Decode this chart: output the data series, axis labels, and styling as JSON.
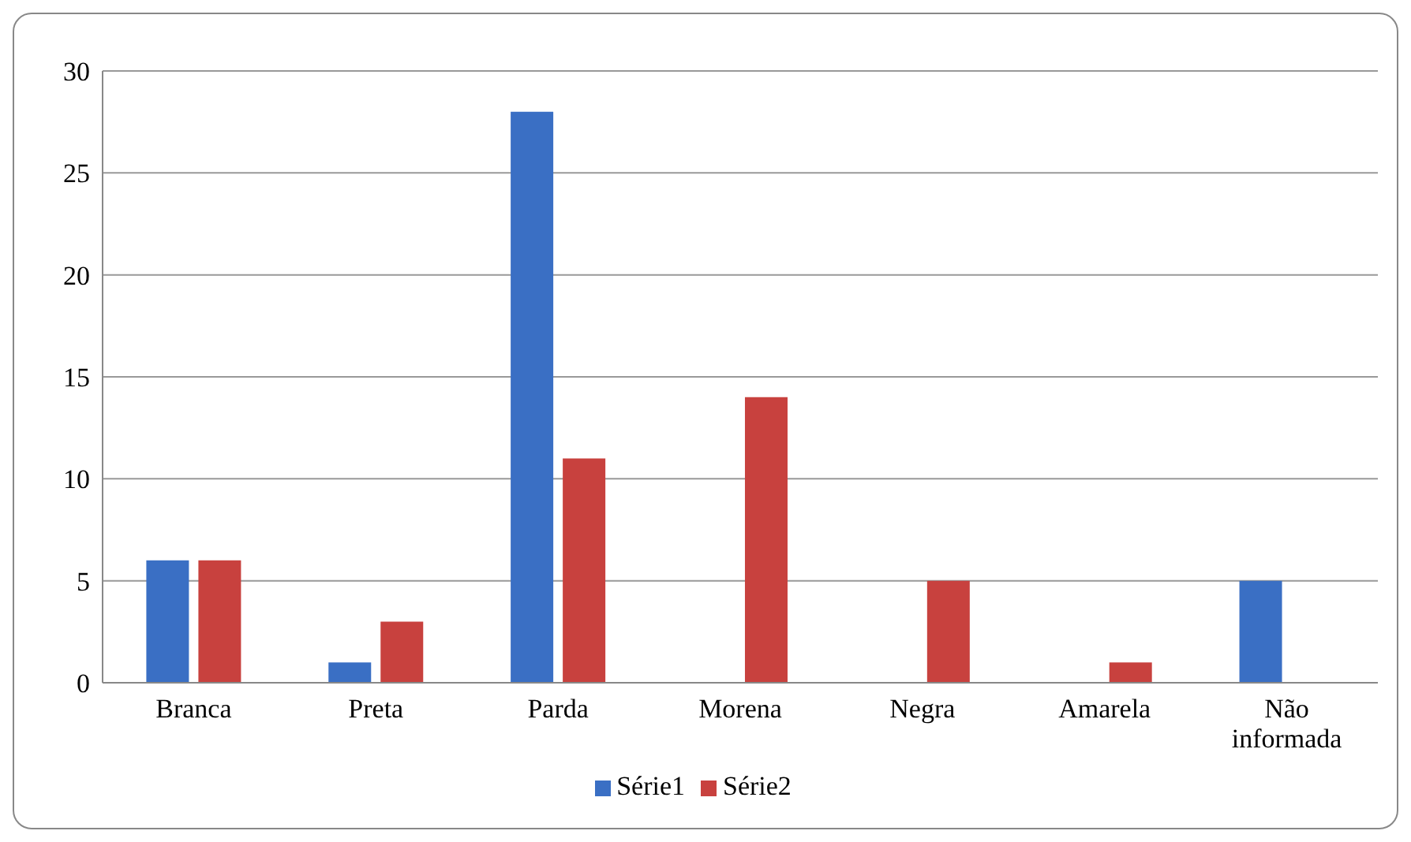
{
  "chart_data": {
    "type": "bar",
    "categories": [
      "Branca",
      "Preta",
      "Parda",
      "Morena",
      "Negra",
      "Amarela",
      "Não informada"
    ],
    "series": [
      {
        "name": "Série1",
        "color": "#3a6fc4",
        "values": [
          6,
          1,
          28,
          null,
          null,
          null,
          5
        ]
      },
      {
        "name": "Série2",
        "color": "#c8413e",
        "values": [
          6,
          3,
          11,
          14,
          5,
          1,
          null
        ]
      }
    ],
    "ylim": [
      0,
      30
    ],
    "yticks": [
      0,
      5,
      10,
      15,
      20,
      25,
      30
    ],
    "grid": "y",
    "legend": "bottom"
  }
}
